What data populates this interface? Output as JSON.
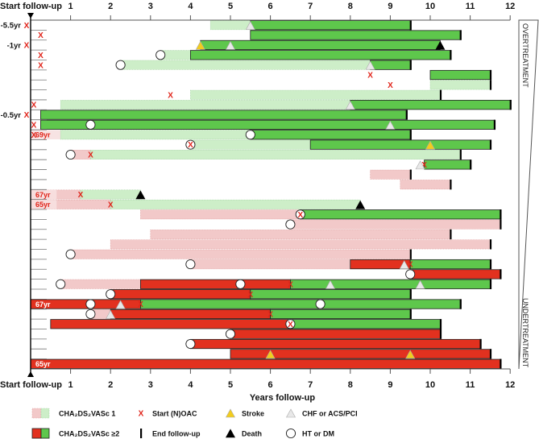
{
  "chart_data": {
    "type": "swimmer",
    "x_axis": {
      "label": "Years follow-up",
      "start_label": "Start follow-up",
      "ticks": [
        "1",
        "2",
        "3",
        "4",
        "5",
        "6",
        "7",
        "8",
        "9",
        "10",
        "11",
        "12"
      ],
      "xlim": [
        0,
        12
      ]
    },
    "side_labels": {
      "top": "OVERTREATMENT",
      "bottom": "UNDERTREATMENT"
    },
    "colors": {
      "pink": "#f2c9c9",
      "lgreen": "#cdeec8",
      "red": "#e2311f",
      "green": "#5ec74c",
      "stroke": "#f2cc1e",
      "chf": "#e8e8e8",
      "death": "#000000",
      "x": "#e0241a"
    },
    "legend": [
      {
        "key": "score1",
        "label": "CHA₂DS₂VASc 1"
      },
      {
        "key": "score2",
        "label": "CHA₂DS₂VASc ≥2"
      },
      {
        "key": "x",
        "label": "Start (N)OAC"
      },
      {
        "key": "end",
        "label": "End follow-up"
      },
      {
        "key": "stroke",
        "label": "Stroke"
      },
      {
        "key": "death",
        "label": "Death"
      },
      {
        "key": "chf",
        "label": "CHF or ACS/PCI"
      },
      {
        "key": "circle",
        "label": "HT or DM"
      }
    ],
    "rows": [
      {
        "pre": "-5.5yr",
        "segs": [
          [
            "lgreen",
            4.5,
            5.5
          ],
          [
            "green",
            5.5,
            9.5
          ]
        ],
        "ev": [
          [
            "chf",
            5.5
          ],
          [
            "end",
            9.5
          ]
        ]
      },
      {
        "segs": [
          [
            "green",
            5.5,
            10.75
          ]
        ],
        "ev": [
          [
            "x",
            0.25
          ],
          [
            "end",
            10.75
          ]
        ]
      },
      {
        "pre": "-1yr",
        "segs": [
          [
            "green",
            4.25,
            10.25
          ]
        ],
        "ev": [
          [
            "stroke",
            4.25
          ],
          [
            "chf",
            5
          ],
          [
            "death",
            10.25
          ]
        ]
      },
      {
        "segs": [
          [
            "lgreen",
            3.25,
            4
          ],
          [
            "green",
            4,
            10.5
          ]
        ],
        "ev": [
          [
            "x",
            0.25
          ],
          [
            "circle",
            3.25
          ],
          [
            "end",
            10.5
          ]
        ]
      },
      {
        "segs": [
          [
            "lgreen",
            2.25,
            8.5
          ],
          [
            "green",
            8.5,
            9.5
          ]
        ],
        "ev": [
          [
            "x",
            0.25
          ],
          [
            "circle",
            2.25
          ],
          [
            "chf",
            8.5
          ],
          [
            "end",
            9.5
          ]
        ]
      },
      {
        "segs": [
          [
            "green",
            10,
            11.5
          ]
        ],
        "ev": [
          [
            "x",
            8.5
          ],
          [
            "end",
            11.5
          ]
        ]
      },
      {
        "segs": [
          [
            "lgreen",
            10,
            11.5
          ]
        ],
        "ev": [
          [
            "x",
            9
          ],
          [
            "end",
            11.5
          ]
        ]
      },
      {
        "segs": [
          [
            "lgreen",
            4,
            10.25
          ]
        ],
        "ev": [
          [
            "x",
            3.5
          ],
          [
            "end",
            10.25
          ]
        ]
      },
      {
        "segs": [
          [
            "lgreen",
            0.75,
            8
          ],
          [
            "green",
            8,
            12
          ]
        ],
        "ev": [
          [
            "x",
            0.07
          ],
          [
            "chf",
            8
          ],
          [
            "end",
            12
          ]
        ]
      },
      {
        "pre": "-0.5yr",
        "segs": [
          [
            "green",
            0.25,
            9.4
          ]
        ],
        "ev": [
          [
            "end",
            9.4
          ]
        ]
      },
      {
        "segs": [
          [
            "green",
            0.25,
            11.6
          ]
        ],
        "ev": [
          [
            "x",
            0.07
          ],
          [
            "circle",
            1.5
          ],
          [
            "chf",
            9
          ],
          [
            "end",
            11.6
          ]
        ]
      },
      {
        "age": "69yr",
        "ageStyle": "light",
        "segs": [
          [
            "pinklight",
            0,
            0.75
          ],
          [
            "lgreen",
            0.75,
            5.5
          ],
          [
            "green",
            5.5,
            9.5
          ]
        ],
        "ev": [
          [
            "x",
            0.07
          ],
          [
            "circle",
            5.5
          ],
          [
            "end",
            9.5
          ]
        ]
      },
      {
        "segs": [
          [
            "lgreen",
            4,
            7
          ],
          [
            "green",
            7,
            11.5
          ]
        ],
        "ev": [
          [
            "circle",
            4
          ],
          [
            "x",
            4
          ],
          [
            "stroke",
            10
          ],
          [
            "end",
            11.5
          ]
        ]
      },
      {
        "segs": [
          [
            "pink",
            1,
            1.5
          ],
          [
            "lgreen",
            1.5,
            10.75
          ]
        ],
        "ev": [
          [
            "circle",
            1
          ],
          [
            "x",
            1.5
          ],
          [
            "end",
            10.75
          ]
        ]
      },
      {
        "segs": [
          [
            "green",
            9.85,
            11
          ]
        ],
        "ev": [
          [
            "chf",
            9.75
          ],
          [
            "x",
            9.85
          ],
          [
            "end",
            11
          ]
        ]
      },
      {
        "segs": [
          [
            "pink",
            8.5,
            9.5
          ]
        ],
        "ev": [
          [
            "end",
            9.5
          ]
        ]
      },
      {
        "segs": [
          [
            "pink",
            9.25,
            10.5
          ]
        ],
        "ev": [
          [
            "end",
            10.5
          ]
        ]
      },
      {
        "age": "67yr",
        "ageStyle": "pink",
        "segs": [
          [
            "pink",
            0,
            1.25
          ],
          [
            "lgreen",
            1.25,
            2.75
          ]
        ],
        "ev": [
          [
            "x",
            1.25
          ],
          [
            "death",
            2.75
          ]
        ]
      },
      {
        "age": "65yr",
        "ageStyle": "pink",
        "segs": [
          [
            "pink",
            0,
            2
          ],
          [
            "lgreen",
            2,
            8.25
          ]
        ],
        "ev": [
          [
            "x",
            2
          ],
          [
            "death",
            8.25
          ]
        ]
      },
      {
        "segs": [
          [
            "pink",
            2.75,
            6.75
          ],
          [
            "green",
            6.75,
            11.75
          ]
        ],
        "ev": [
          [
            "circle",
            6.75
          ],
          [
            "x",
            6.75
          ],
          [
            "end",
            11.75
          ]
        ]
      },
      {
        "segs": [
          [
            "pink",
            6.5,
            11.75
          ]
        ],
        "ev": [
          [
            "circle",
            6.5
          ],
          [
            "end",
            11.75
          ]
        ]
      },
      {
        "segs": [
          [
            "pink",
            3,
            10.5
          ]
        ],
        "ev": [
          [
            "end",
            10.5
          ]
        ]
      },
      {
        "segs": [
          [
            "pink",
            2,
            11.5
          ]
        ],
        "ev": [
          [
            "end",
            11.5
          ]
        ]
      },
      {
        "segs": [
          [
            "pink",
            1,
            9.5
          ]
        ],
        "ev": [
          [
            "circle",
            1
          ],
          [
            "end",
            9.5
          ]
        ]
      },
      {
        "segs": [
          [
            "pink",
            4,
            8
          ],
          [
            "red",
            8,
            9.5
          ],
          [
            "green",
            9.5,
            11.5
          ]
        ],
        "ev": [
          [
            "circle",
            4
          ],
          [
            "chf",
            9.35
          ],
          [
            "x",
            9.5
          ],
          [
            "end",
            11.5
          ]
        ]
      },
      {
        "segs": [
          [
            "red",
            9.5,
            11.75
          ]
        ],
        "ev": [
          [
            "circle",
            9.5
          ],
          [
            "end",
            11.75
          ]
        ]
      },
      {
        "segs": [
          [
            "pink",
            0.75,
            2.75
          ],
          [
            "red",
            2.75,
            6.5
          ],
          [
            "green",
            6.5,
            11.5
          ]
        ],
        "ev": [
          [
            "circle",
            0.75
          ],
          [
            "circle",
            5.25
          ],
          [
            "x",
            6.5
          ],
          [
            "chf",
            7.5
          ],
          [
            "chf",
            9.75
          ],
          [
            "end",
            11.5
          ]
        ]
      },
      {
        "segs": [
          [
            "red",
            2,
            5.5
          ],
          [
            "green",
            5.5,
            9.5
          ]
        ],
        "ev": [
          [
            "circle",
            2
          ],
          [
            "x",
            5.5
          ],
          [
            "end",
            9.5
          ]
        ]
      },
      {
        "age": "67yr",
        "ageStyle": "red",
        "segs": [
          [
            "red",
            0,
            2.75
          ],
          [
            "green",
            2.75,
            10.75
          ]
        ],
        "ev": [
          [
            "circle",
            1.5
          ],
          [
            "chf",
            2.25
          ],
          [
            "x",
            2.75
          ],
          [
            "circle",
            7.25
          ],
          [
            "end",
            10.75
          ]
        ]
      },
      {
        "segs": [
          [
            "pink",
            1.5,
            2
          ],
          [
            "red",
            2,
            6
          ],
          [
            "green",
            6,
            9.5
          ]
        ],
        "ev": [
          [
            "circle",
            1.5
          ],
          [
            "chf",
            2
          ],
          [
            "x",
            6
          ],
          [
            "end",
            9.5
          ]
        ]
      },
      {
        "segs": [
          [
            "red",
            0.5,
            6.5
          ],
          [
            "green",
            6.5,
            10.25
          ]
        ],
        "ev": [
          [
            "circle",
            6.5
          ],
          [
            "x",
            6.5
          ],
          [
            "end",
            10.25
          ]
        ]
      },
      {
        "segs": [
          [
            "red",
            5,
            10.25
          ]
        ],
        "ev": [
          [
            "circle",
            5
          ],
          [
            "end",
            10.25
          ]
        ]
      },
      {
        "segs": [
          [
            "red",
            4,
            11.25
          ]
        ],
        "ev": [
          [
            "circle",
            4
          ],
          [
            "end",
            11.25
          ]
        ]
      },
      {
        "segs": [
          [
            "red",
            5,
            11.5
          ]
        ],
        "ev": [
          [
            "stroke",
            6
          ],
          [
            "stroke",
            9.5
          ],
          [
            "end",
            11.5
          ]
        ]
      },
      {
        "age": "65yr",
        "ageStyle": "red",
        "segs": [
          [
            "red",
            0,
            11.75
          ]
        ],
        "ev": [
          [
            "end",
            11.75
          ]
        ]
      }
    ]
  }
}
